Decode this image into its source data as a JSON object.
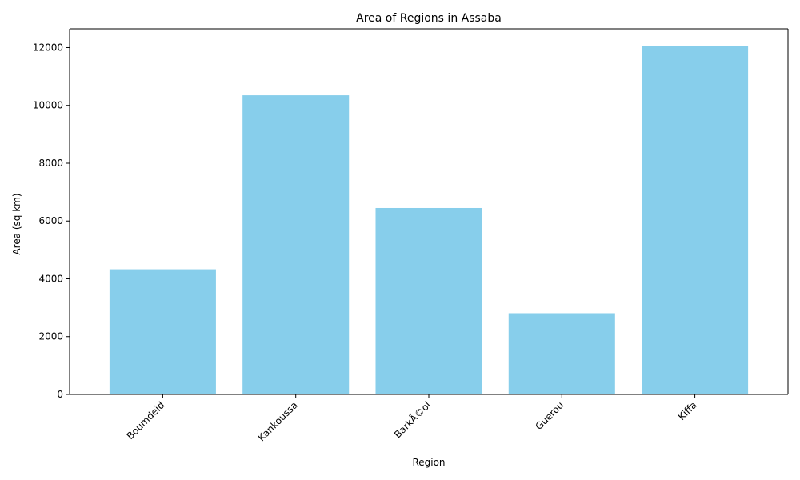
{
  "chart_data": {
    "type": "bar",
    "title": "Area of Regions in Assaba",
    "xlabel": "Region",
    "ylabel": "Area (sq km)",
    "categories": [
      "Boumdeid",
      "Kankoussa",
      "BarkÃ©ol",
      "Guerou",
      "Kiffa"
    ],
    "values": [
      4330,
      10350,
      6450,
      2810,
      12050
    ],
    "ylim": [
      0,
      12650
    ],
    "yticks": [
      0,
      2000,
      4000,
      6000,
      8000,
      10000,
      12000
    ],
    "ytick_labels": [
      "0",
      "2000",
      "4000",
      "6000",
      "8000",
      "10000",
      "12000"
    ],
    "bar_color": "#87ceeb",
    "grid": false,
    "legend": "none"
  }
}
